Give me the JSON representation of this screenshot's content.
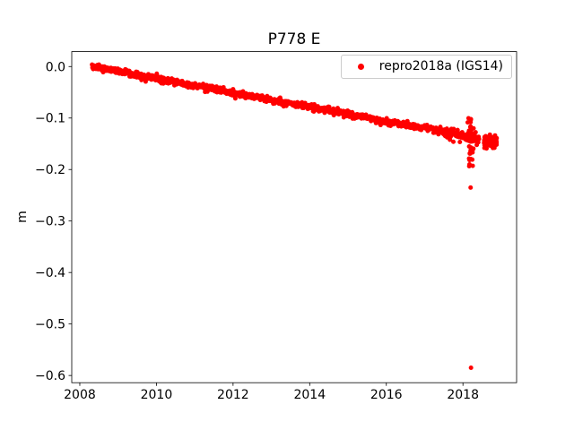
{
  "chart_data": {
    "type": "scatter",
    "title": "P778 E",
    "xlabel": "",
    "ylabel": "m",
    "xlim": [
      2007.79,
      2019.4
    ],
    "ylim": [
      -0.614,
      0.029
    ],
    "xticks": [
      2008,
      2010,
      2012,
      2014,
      2016,
      2018
    ],
    "xtick_labels": [
      "2008",
      "2010",
      "2012",
      "2014",
      "2016",
      "2018"
    ],
    "yticks": [
      0.0,
      -0.1,
      -0.2,
      -0.3,
      -0.4,
      -0.5,
      -0.6
    ],
    "ytick_labels": [
      "0.0",
      "−0.1",
      "−0.2",
      "−0.3",
      "−0.4",
      "−0.5",
      "−0.6"
    ],
    "grid": false,
    "background": "#ffffff",
    "legend": {
      "position": "upper right",
      "entries": [
        {
          "label": "repro2018a (IGS14)",
          "color": "#ff0000",
          "marker": "dot"
        }
      ]
    },
    "series": [
      {
        "name": "repro2018a (IGS14)",
        "color": "#ff0000",
        "marker": "point",
        "marker_radius_px": 2.5,
        "trend": {
          "x_start": 2008.32,
          "x_end": 2018.42,
          "y_start": 0.0,
          "y_end": -0.14,
          "x_step": 0.01,
          "noise_std": 0.003,
          "late_noise_x": 2017.5,
          "late_noise_factor": 1.8
        },
        "burst": {
          "x_center": 2018.2,
          "x_std": 0.035,
          "y_min": -0.198,
          "y_max": -0.1,
          "count": 45
        },
        "tail_cluster": {
          "x_start": 2018.55,
          "x_end": 2018.88,
          "y_center": -0.146,
          "y_std": 0.005,
          "count": 140
        },
        "outliers": [
          [
            2018.2,
            -0.235
          ],
          [
            2018.21,
            -0.585
          ]
        ],
        "sample_points": [
          [
            2008.3,
            0.0
          ],
          [
            2008.8,
            -0.007
          ],
          [
            2009.3,
            -0.014
          ],
          [
            2009.8,
            -0.021
          ],
          [
            2010.3,
            -0.027
          ],
          [
            2010.8,
            -0.034
          ],
          [
            2011.3,
            -0.041
          ],
          [
            2011.8,
            -0.048
          ],
          [
            2012.3,
            -0.055
          ],
          [
            2012.8,
            -0.062
          ],
          [
            2013.3,
            -0.069
          ],
          [
            2013.8,
            -0.076
          ],
          [
            2014.3,
            -0.083
          ],
          [
            2014.8,
            -0.09
          ],
          [
            2015.3,
            -0.097
          ],
          [
            2015.8,
            -0.104
          ],
          [
            2016.3,
            -0.11
          ],
          [
            2016.8,
            -0.117
          ],
          [
            2017.3,
            -0.124
          ],
          [
            2017.8,
            -0.131
          ],
          [
            2018.3,
            -0.138
          ],
          [
            2018.8,
            -0.145
          ]
        ]
      }
    ]
  }
}
